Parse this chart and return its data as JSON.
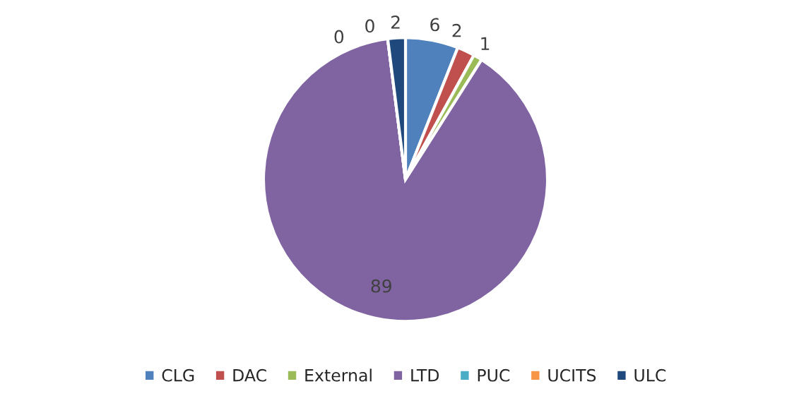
{
  "chart_data": {
    "type": "pie",
    "categories": [
      "CLG",
      "DAC",
      "External",
      "LTD",
      "PUC",
      "UCITS",
      "ULC"
    ],
    "values": [
      6,
      2,
      1,
      89,
      0,
      0,
      2
    ],
    "colors": [
      "#4f81bd",
      "#c0504d",
      "#9bbb59",
      "#8064a2",
      "#4bacc6",
      "#f79646",
      "#1f497d"
    ],
    "value_labels": [
      "6",
      "2",
      "1",
      "89",
      "0",
      "0",
      "2"
    ],
    "legend": "bottom"
  }
}
